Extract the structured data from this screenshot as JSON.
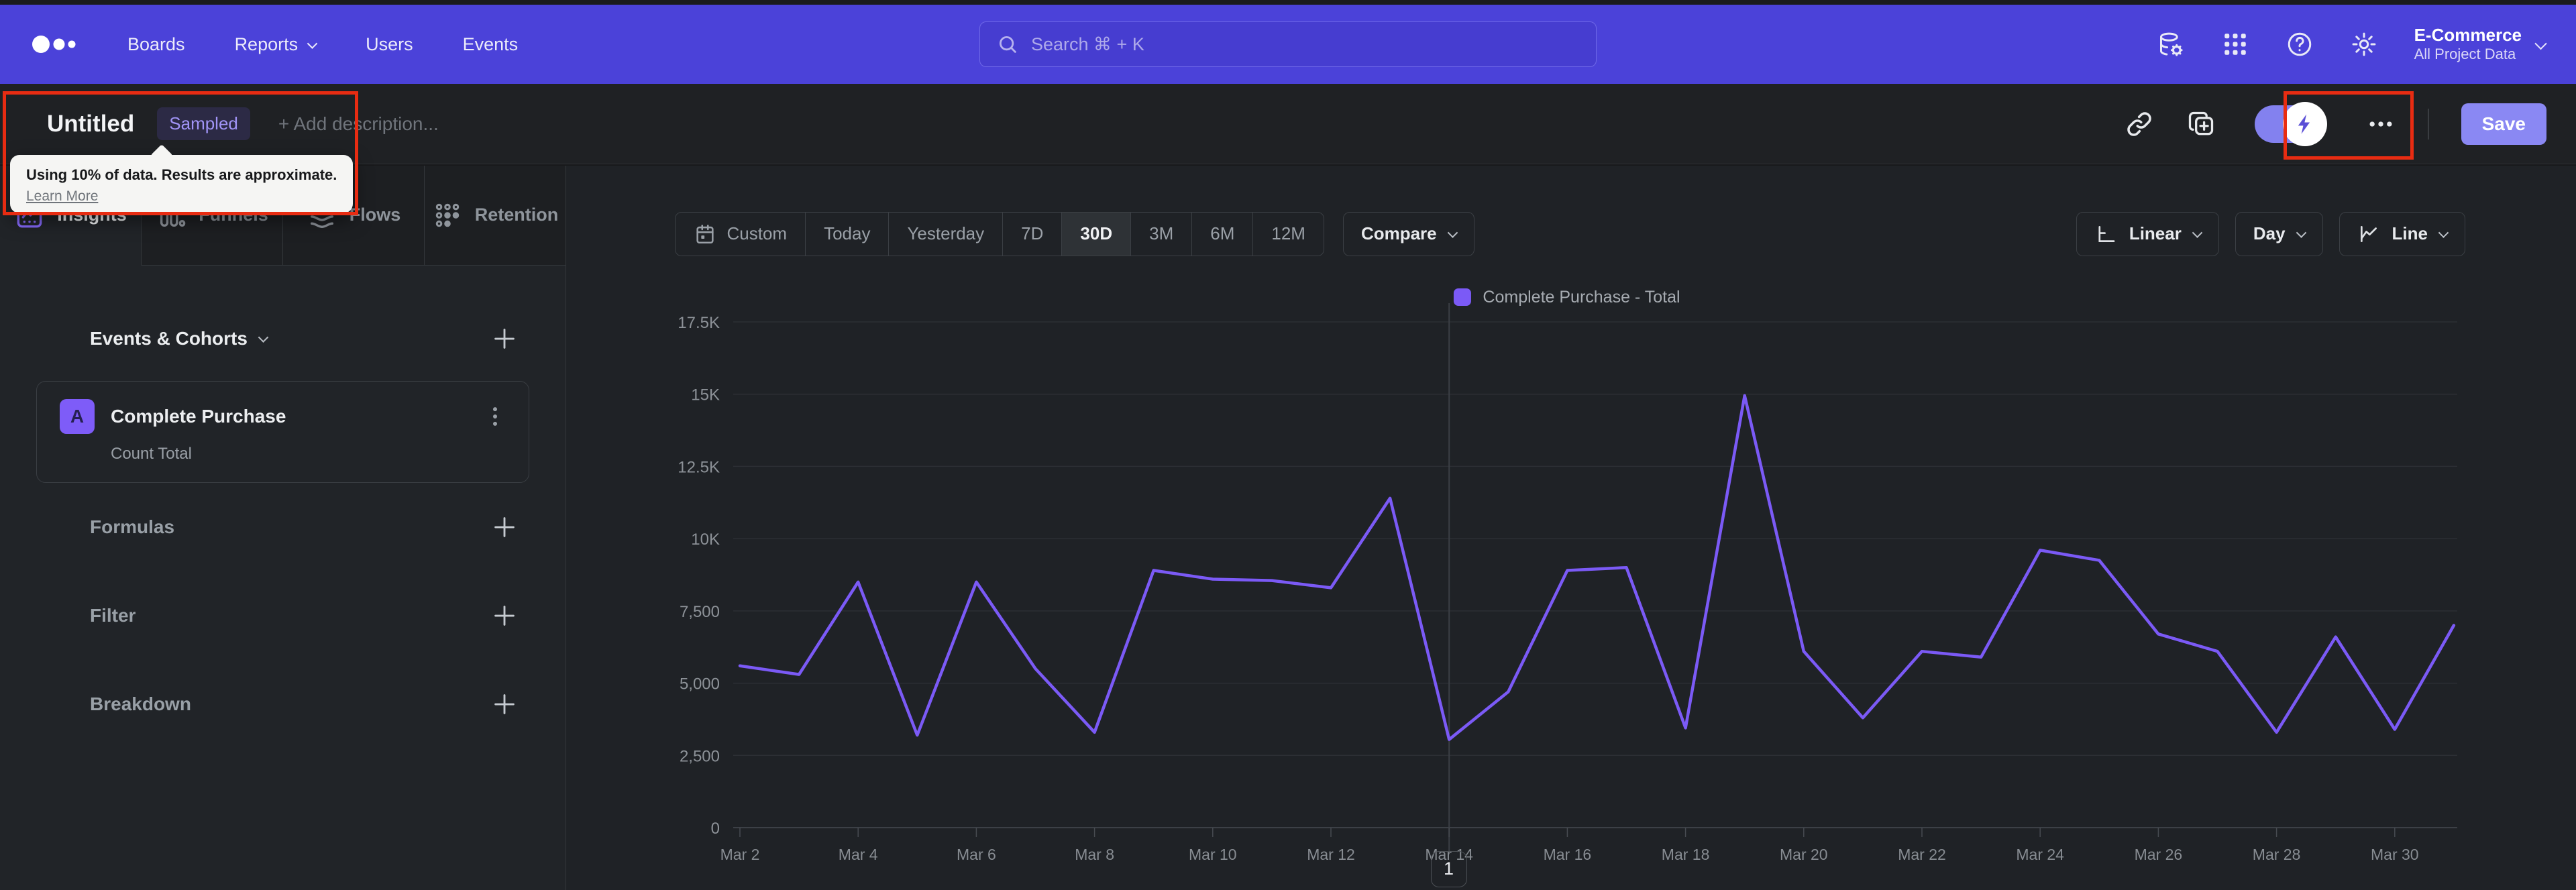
{
  "nav": {
    "menu": [
      {
        "label": "Boards",
        "dropdown": false
      },
      {
        "label": "Reports",
        "dropdown": true
      },
      {
        "label": "Users",
        "dropdown": false
      },
      {
        "label": "Events",
        "dropdown": false
      }
    ],
    "search_placeholder": "Search  ⌘ + K",
    "icons": [
      "data-management",
      "apps-grid",
      "help",
      "settings"
    ],
    "project": {
      "name": "E-Commerce",
      "scope": "All Project Data"
    }
  },
  "header": {
    "title": "Untitled",
    "badge": "Sampled",
    "description_placeholder": "+ Add description...",
    "sampling_toggle_on": true,
    "save_label": "Save"
  },
  "tooltip": {
    "text": "Using 10% of data. Results are approximate.",
    "link_label": "Learn More"
  },
  "sidebar": {
    "tabs": [
      {
        "label": "Insights",
        "active": true
      },
      {
        "label": "Funnels",
        "active": false
      },
      {
        "label": "Flows",
        "active": false
      },
      {
        "label": "Retention",
        "active": false
      }
    ],
    "events_heading": "Events & Cohorts",
    "event": {
      "letter": "A",
      "name": "Complete Purchase",
      "metric": "Count Total"
    },
    "sections": [
      "Formulas",
      "Filter",
      "Breakdown"
    ]
  },
  "controls": {
    "date_ranges": [
      "Custom",
      "Today",
      "Yesterday",
      "7D",
      "30D",
      "3M",
      "6M",
      "12M"
    ],
    "active_range": "30D",
    "compare_label": "Compare",
    "scale_label": "Linear",
    "interval_label": "Day",
    "chart_type_label": "Line"
  },
  "chart_data": {
    "type": "line",
    "x": [
      "Mar 2",
      "Mar 3",
      "Mar 4",
      "Mar 5",
      "Mar 6",
      "Mar 7",
      "Mar 8",
      "Mar 9",
      "Mar 10",
      "Mar 11",
      "Mar 12",
      "Mar 13",
      "Mar 14",
      "Mar 15",
      "Mar 16",
      "Mar 17",
      "Mar 18",
      "Mar 19",
      "Mar 20",
      "Mar 21",
      "Mar 22",
      "Mar 23",
      "Mar 24",
      "Mar 25",
      "Mar 26",
      "Mar 27",
      "Mar 28",
      "Mar 29",
      "Mar 30",
      "Mar 31"
    ],
    "series": [
      {
        "name": "Complete Purchase - Total",
        "color": "#7b5af6",
        "values": [
          5600,
          5300,
          8500,
          3200,
          8500,
          5500,
          3300,
          8900,
          8600,
          8550,
          8300,
          11400,
          3050,
          4700,
          8900,
          9000,
          3450,
          14950,
          6100,
          3800,
          6100,
          5900,
          9600,
          9250,
          6700,
          6100,
          3300,
          6600,
          3400,
          7000
        ]
      }
    ],
    "ylim": [
      0,
      17500
    ],
    "y_ticks": [
      {
        "value": 0,
        "label": "0"
      },
      {
        "value": 2500,
        "label": "2,500"
      },
      {
        "value": 5000,
        "label": "5,000"
      },
      {
        "value": 7500,
        "label": "7,500"
      },
      {
        "value": 10000,
        "label": "10K"
      },
      {
        "value": 12500,
        "label": "12.5K"
      },
      {
        "value": 15000,
        "label": "15K"
      },
      {
        "value": 17500,
        "label": "17.5K"
      }
    ],
    "x_tick_every": 2,
    "vline_x": "Mar 14",
    "grid": true,
    "legend_position": "top-center"
  },
  "pagination": {
    "current_page": "1"
  },
  "colors": {
    "nav_background": "#4b42d9",
    "accent_purple": "#7b5af6",
    "save_button": "#8a88f3",
    "annotation_red": "#e82c12",
    "badge_text": "#a194f6",
    "background": "#1f2226"
  }
}
